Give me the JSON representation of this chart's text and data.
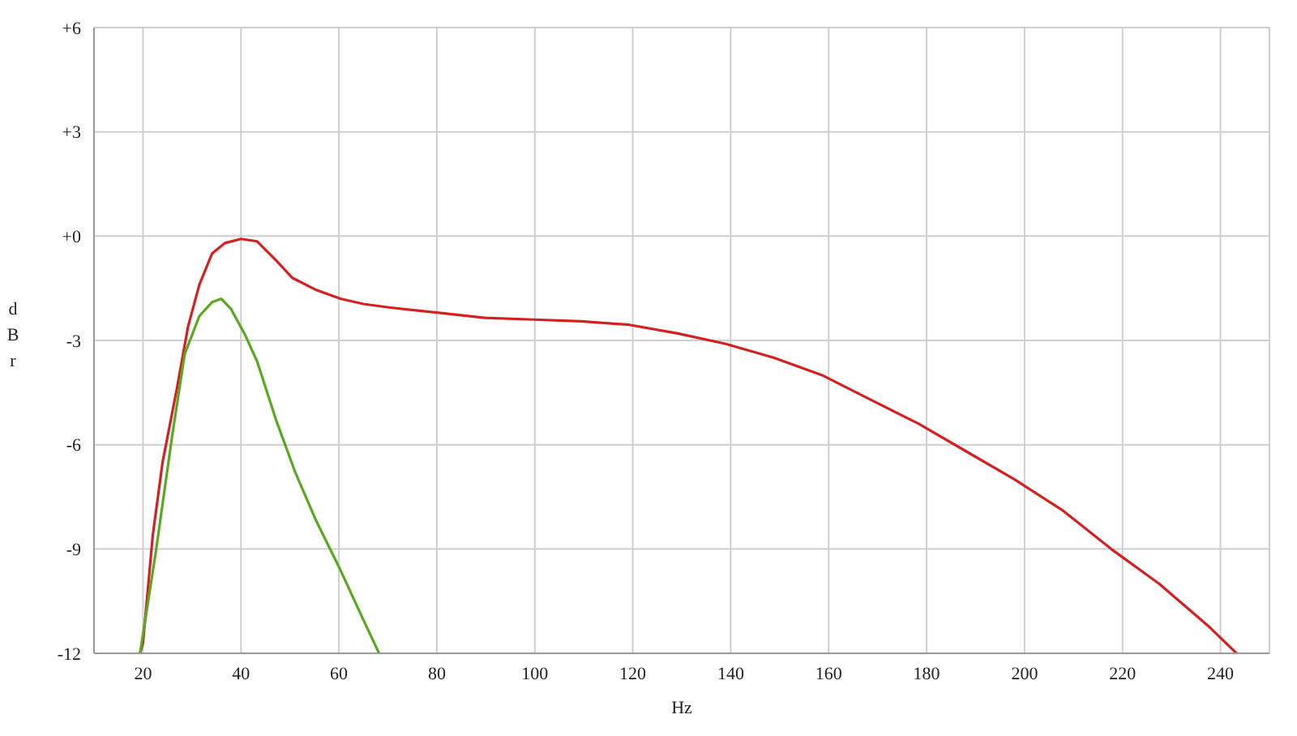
{
  "chart_data": {
    "type": "line",
    "xlabel": "Hz",
    "ylabel": "dBr",
    "xlim": [
      10,
      250
    ],
    "xticks": [
      20,
      40,
      60,
      80,
      100,
      120,
      140,
      160,
      180,
      200,
      220,
      240
    ],
    "ylim": [
      -12,
      6
    ],
    "yticks": [
      {
        "value": -12,
        "label": "-12"
      },
      {
        "value": -9,
        "label": "-9"
      },
      {
        "value": -6,
        "label": "-6"
      },
      {
        "value": -3,
        "label": "-3"
      },
      {
        "value": 0,
        "label": "+0"
      },
      {
        "value": 3,
        "label": "+3"
      },
      {
        "value": 6,
        "label": "+6"
      }
    ],
    "grid": true,
    "legend": false,
    "marker": "none",
    "line_style": "solid",
    "series": [
      {
        "color": "#d42020",
        "x": [
          19.4,
          20,
          22,
          24,
          26.9,
          29.2,
          31.5,
          34.1,
          36.7,
          40,
          43.3,
          47.2,
          50.5,
          55.4,
          60.3,
          65,
          70.2,
          80,
          89.8,
          99.7,
          109.5,
          119.3,
          129.2,
          139,
          148.9,
          158.7,
          168.5,
          178.4,
          188.2,
          198,
          207.9,
          217.7,
          227.5,
          237.4,
          243.3
        ],
        "values": [
          -12,
          -11.7,
          -8.6,
          -6.5,
          -4.4,
          -2.6,
          -1.4,
          -0.5,
          -0.2,
          -0.08,
          -0.15,
          -0.7,
          -1.2,
          -1.55,
          -1.8,
          -1.95,
          -2.05,
          -2.2,
          -2.35,
          -2.4,
          -2.45,
          -2.55,
          -2.8,
          -3.1,
          -3.5,
          -4.0,
          -4.7,
          -5.4,
          -6.2,
          -7.0,
          -7.9,
          -9.0,
          -10.0,
          -11.2,
          -12
        ]
      },
      {
        "color": "#5aa820",
        "x": [
          19.4,
          22.6,
          25.9,
          28.5,
          31.5,
          34.1,
          36,
          38,
          40.7,
          43.3,
          47.2,
          51.1,
          55.4,
          60.3,
          65.2,
          68.2
        ],
        "values": [
          -12,
          -9.1,
          -5.8,
          -3.4,
          -2.3,
          -1.9,
          -1.8,
          -2.1,
          -2.8,
          -3.6,
          -5.3,
          -6.8,
          -8.2,
          -9.6,
          -11.1,
          -12
        ]
      }
    ]
  }
}
